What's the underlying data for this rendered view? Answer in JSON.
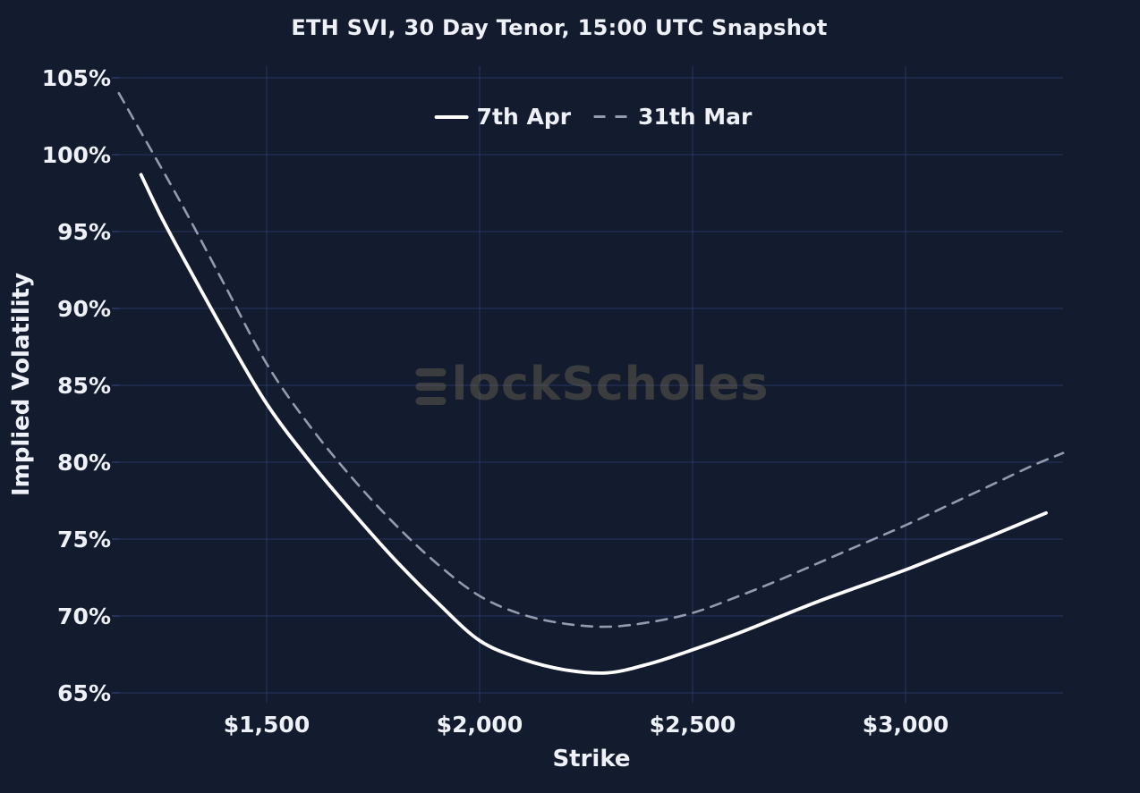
{
  "title": "ETH SVI, 30 Day Tenor, 15:00 UTC Snapshot",
  "legend": {
    "position": "top-center",
    "items": [
      {
        "label": "7th Apr",
        "style": "solid"
      },
      {
        "label": "31th Mar",
        "style": "dashed"
      }
    ]
  },
  "axes": {
    "x_label": "Strike",
    "y_label": "Implied Volatility"
  },
  "watermark": {
    "full_text": "BlockScholes",
    "logo_glyph": "B",
    "text_rest": "lockScholes"
  },
  "colors": {
    "background": "#131b2f",
    "gridline": "#2c3a68",
    "solid_series": "#ffffff",
    "dashed_series": "#929cae",
    "text": "#eef1f7",
    "watermark": "#968a60"
  },
  "chart_data": {
    "type": "line",
    "title": "ETH SVI, 30 Day Tenor, 15:00 UTC Snapshot",
    "xlabel": "Strike",
    "ylabel": "Implied Volatility",
    "xlim": [
      1150,
      3375
    ],
    "ylim": [
      65,
      105
    ],
    "grid": true,
    "legend_position": "top-center",
    "x_ticks": [
      {
        "value": 1500,
        "label": "$1,500"
      },
      {
        "value": 2000,
        "label": "$2,000"
      },
      {
        "value": 2500,
        "label": "$2,500"
      },
      {
        "value": 3000,
        "label": "$3,000"
      }
    ],
    "y_ticks": [
      {
        "value": 65,
        "label": "65%"
      },
      {
        "value": 70,
        "label": "70%"
      },
      {
        "value": 75,
        "label": "75%"
      },
      {
        "value": 80,
        "label": "80%"
      },
      {
        "value": 85,
        "label": "85%"
      },
      {
        "value": 90,
        "label": "90%"
      },
      {
        "value": 95,
        "label": "95%"
      },
      {
        "value": 100,
        "label": "100%"
      },
      {
        "value": 105,
        "label": "105%"
      }
    ],
    "series": [
      {
        "name": "7th Apr",
        "style": "solid",
        "color": "#ffffff",
        "points": [
          [
            1205,
            98.7
          ],
          [
            1250,
            96.1
          ],
          [
            1300,
            93.5
          ],
          [
            1400,
            88.5
          ],
          [
            1500,
            83.8
          ],
          [
            1600,
            80.1
          ],
          [
            1700,
            76.8
          ],
          [
            1800,
            73.7
          ],
          [
            1900,
            70.9
          ],
          [
            2000,
            68.4
          ],
          [
            2100,
            67.2
          ],
          [
            2200,
            66.5
          ],
          [
            2300,
            66.3
          ],
          [
            2400,
            66.9
          ],
          [
            2500,
            67.8
          ],
          [
            2600,
            68.8
          ],
          [
            2700,
            69.9
          ],
          [
            2800,
            71.0
          ],
          [
            2900,
            72.0
          ],
          [
            3000,
            73.0
          ],
          [
            3100,
            74.1
          ],
          [
            3200,
            75.2
          ],
          [
            3330,
            76.7
          ]
        ]
      },
      {
        "name": "31th Mar",
        "style": "dashed",
        "color": "#929cae",
        "points": [
          [
            1153,
            104.0
          ],
          [
            1200,
            101.7
          ],
          [
            1300,
            96.8
          ],
          [
            1400,
            91.6
          ],
          [
            1500,
            86.4
          ],
          [
            1600,
            82.4
          ],
          [
            1700,
            79.0
          ],
          [
            1800,
            76.0
          ],
          [
            1900,
            73.4
          ],
          [
            2000,
            71.3
          ],
          [
            2100,
            70.1
          ],
          [
            2200,
            69.5
          ],
          [
            2300,
            69.3
          ],
          [
            2400,
            69.6
          ],
          [
            2500,
            70.2
          ],
          [
            2600,
            71.2
          ],
          [
            2700,
            72.3
          ],
          [
            2800,
            73.5
          ],
          [
            2900,
            74.7
          ],
          [
            3000,
            75.9
          ],
          [
            3100,
            77.2
          ],
          [
            3200,
            78.5
          ],
          [
            3300,
            79.8
          ],
          [
            3370,
            80.6
          ]
        ]
      }
    ]
  }
}
